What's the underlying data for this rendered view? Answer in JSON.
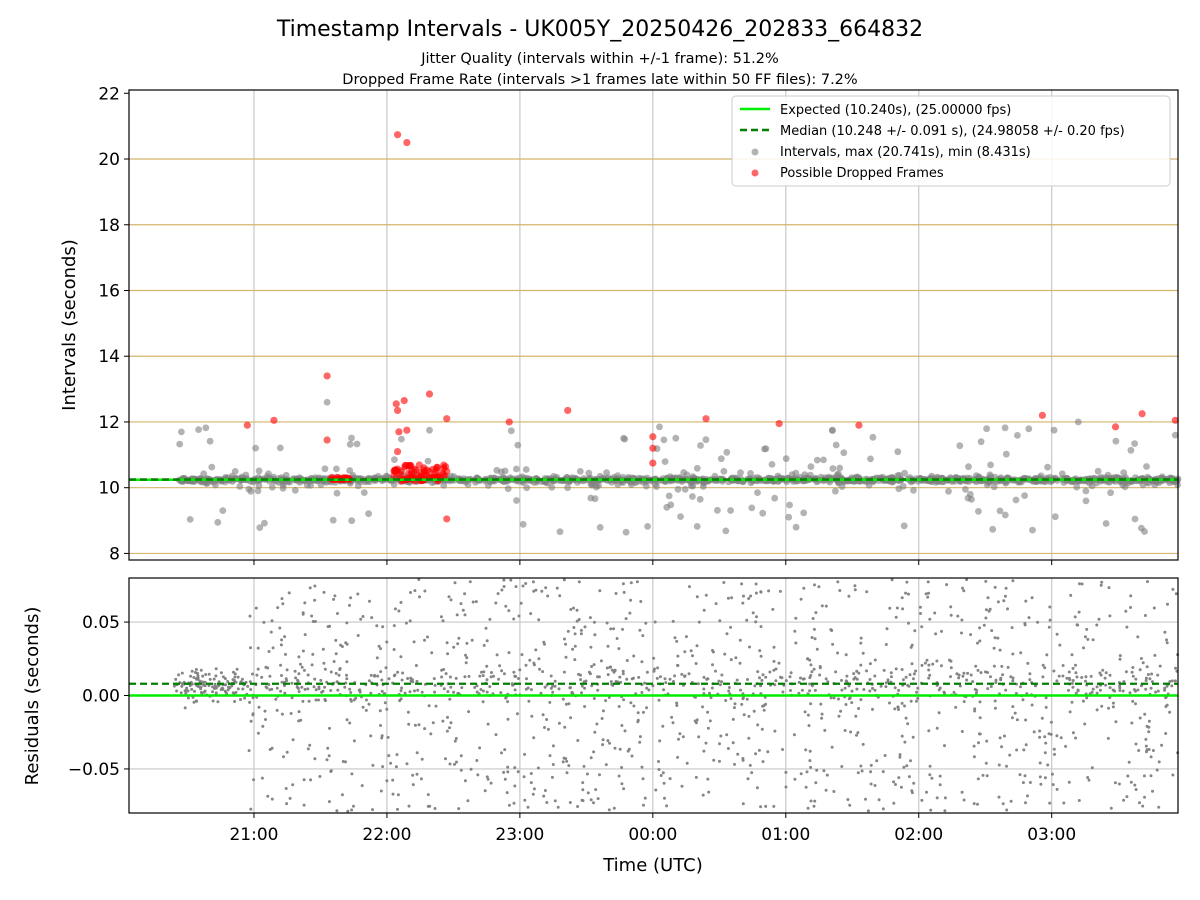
{
  "chart_data": [
    {
      "type": "scatter",
      "title": "Timestamp Intervals - UK005Y_20250426_202833_664832",
      "subtitle_lines": [
        "Jitter Quality (intervals within +/-1 frame): 51.2%",
        "Dropped Frame Rate (intervals >1 frames late within 50 FF files): 7.2%"
      ],
      "xlabel": "",
      "ylabel": "Intervals (seconds)",
      "ylim": [
        7.8,
        22.1
      ],
      "yticks": [
        8,
        10,
        12,
        14,
        16,
        18,
        20,
        22
      ],
      "ytick_labels": [
        "8",
        "10",
        "12",
        "14",
        "16",
        "18",
        "20",
        "22"
      ],
      "xlim_hours": [
        20.06,
        27.95
      ],
      "xticks_hours": [
        21,
        22,
        23,
        24,
        25,
        26,
        27
      ],
      "grid": true,
      "legend_placement": "upper-right",
      "reference_lines": [
        {
          "name": "Expected (10.240s), (25.00000 fps)",
          "y": 10.24,
          "color": "#00ee00",
          "style": "solid"
        },
        {
          "name": "Median (10.248 +/- 0.091 s), (24.98058 +/- 0.20 fps)",
          "y": 10.248,
          "color": "#007f00",
          "style": "dashed"
        }
      ],
      "band_lines_y": [
        8,
        10,
        12,
        14,
        16,
        18,
        20
      ],
      "series": [
        {
          "name": "Intervals, max (20.741s), min (8.431s)",
          "color": "#808080",
          "max": 20.741,
          "min": 8.431
        },
        {
          "name": "Possible Dropped Frames",
          "color": "#ff0000",
          "points": [
            {
              "x": 20.95,
              "y": 11.9
            },
            {
              "x": 21.15,
              "y": 12.05
            },
            {
              "x": 21.55,
              "y": 13.4
            },
            {
              "x": 21.55,
              "y": 11.45
            },
            {
              "x": 22.08,
              "y": 20.74
            },
            {
              "x": 22.15,
              "y": 20.5
            },
            {
              "x": 22.07,
              "y": 12.55
            },
            {
              "x": 22.08,
              "y": 12.35
            },
            {
              "x": 22.13,
              "y": 12.65
            },
            {
              "x": 22.09,
              "y": 11.7
            },
            {
              "x": 22.15,
              "y": 11.75
            },
            {
              "x": 22.08,
              "y": 11.1
            },
            {
              "x": 22.32,
              "y": 12.85
            },
            {
              "x": 22.45,
              "y": 12.1
            },
            {
              "x": 22.45,
              "y": 10.5
            },
            {
              "x": 22.45,
              "y": 9.05
            },
            {
              "x": 22.92,
              "y": 12.0
            },
            {
              "x": 23.36,
              "y": 12.35
            },
            {
              "x": 24.0,
              "y": 11.55
            },
            {
              "x": 24.0,
              "y": 11.2
            },
            {
              "x": 24.0,
              "y": 10.75
            },
            {
              "x": 24.4,
              "y": 12.1
            },
            {
              "x": 24.95,
              "y": 11.95
            },
            {
              "x": 25.55,
              "y": 11.9
            },
            {
              "x": 26.93,
              "y": 12.2
            },
            {
              "x": 27.48,
              "y": 11.85
            },
            {
              "x": 27.68,
              "y": 12.25
            },
            {
              "x": 27.93,
              "y": 12.05
            }
          ],
          "clusters": [
            {
              "x_from": 21.57,
              "x_to": 21.73,
              "y": 10.28,
              "count": 24
            },
            {
              "x_from": 22.05,
              "x_to": 22.45,
              "y_from": 10.2,
              "y_to": 10.7,
              "count": 70
            }
          ]
        }
      ]
    },
    {
      "type": "scatter",
      "title": "",
      "xlabel": "Time (UTC)",
      "ylabel": "Residuals (seconds)",
      "ylim": [
        -0.08,
        0.08
      ],
      "yticks": [
        -0.05,
        0.0,
        0.05
      ],
      "ytick_labels": [
        "−0.05",
        "0.00",
        "0.05"
      ],
      "xlim_hours": [
        20.06,
        27.95
      ],
      "xticks_hours": [
        21,
        22,
        23,
        24,
        25,
        26,
        27
      ],
      "xtick_labels": [
        "21:00",
        "22:00",
        "23:00",
        "00:00",
        "01:00",
        "02:00",
        "03:00"
      ],
      "grid": true,
      "reference_lines": [
        {
          "y": 0.0,
          "color": "#00ee00",
          "style": "solid"
        },
        {
          "y": 0.008,
          "color": "#007f00",
          "style": "dashed"
        }
      ],
      "series": [
        {
          "color": "#808080",
          "x_from": 20.4,
          "x_to": 27.95,
          "y_range": [
            -0.08,
            0.08
          ]
        }
      ]
    }
  ]
}
